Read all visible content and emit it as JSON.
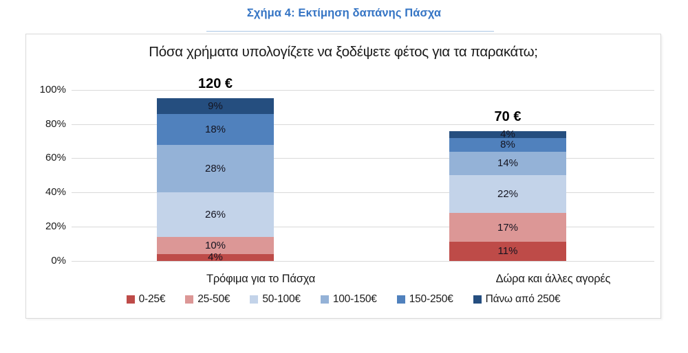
{
  "page_title": "Σχήμα 4: Εκτίμηση δαπάνης Πάσχα",
  "chart_data": {
    "type": "bar",
    "stacked": true,
    "title": "Πόσα χρήματα υπολογίζετε να ξοδέψετε φέτος για τα παρακάτω;",
    "categories": [
      "Τρόφιμα για το Πάσχα",
      "Δώρα και άλλες αγορές"
    ],
    "bar_total_labels": [
      "120 €",
      "70 €"
    ],
    "series": [
      {
        "name": "0-25€",
        "color": "#BE4B48",
        "values": [
          4,
          11
        ]
      },
      {
        "name": "25-50€",
        "color": "#DC9796",
        "values": [
          10,
          17
        ]
      },
      {
        "name": "50-100€",
        "color": "#C3D3E9",
        "values": [
          26,
          22
        ]
      },
      {
        "name": "100-150€",
        "color": "#94B2D7",
        "values": [
          28,
          14
        ]
      },
      {
        "name": "150-250€",
        "color": "#5081BD",
        "values": [
          18,
          8
        ]
      },
      {
        "name": "Πάνω από 250€",
        "color": "#254E7F",
        "values": [
          9,
          4
        ]
      }
    ],
    "y_ticks": [
      "0%",
      "20%",
      "40%",
      "60%",
      "80%",
      "100%"
    ],
    "y_tick_values": [
      0,
      20,
      40,
      60,
      80,
      100
    ],
    "ylim": [
      0,
      100
    ],
    "grid": true,
    "legend_position": "bottom",
    "segment_label_suffix": "%"
  }
}
